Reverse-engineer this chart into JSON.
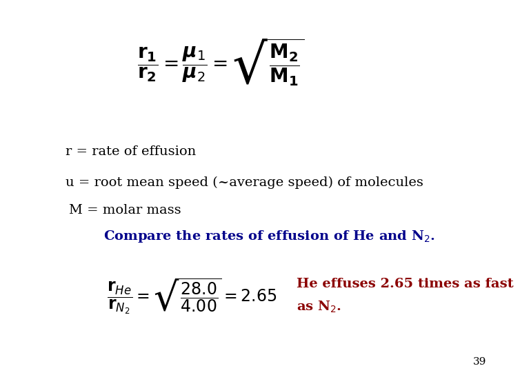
{
  "background_color": "#ffffff",
  "text_color_black": "#000000",
  "text_color_blue": "#00008B",
  "text_color_red": "#8B0000",
  "page_number": "39",
  "main_equation": "$\\dfrac{\\mathbf{r_1}}{\\mathbf{r_2}} = \\dfrac{\\boldsymbol{\\mu}_1}{\\boldsymbol{\\mu}_2} = \\sqrt{\\dfrac{\\mathbf{M_2}}{\\mathbf{M_1}}}$",
  "line1": "r = rate of effusion",
  "line2": "u = root mean speed (~average speed) of molecules",
  "line3": "M = molar mass",
  "compare_line": "Compare the rates of effusion of He and N$_2$.",
  "example_equation": "$\\dfrac{\\mathbf{r}_{He}}{\\mathbf{r}_{N_2}} = \\sqrt{\\dfrac{28.0}{4.00}} = 2.65$",
  "result_line1": "He effuses 2.65 times as fast",
  "result_line2": "as N$_2$.",
  "main_eq_fontsize": 20,
  "body_fontsize": 14,
  "compare_fontsize": 14,
  "example_eq_fontsize": 17,
  "result_fontsize": 14,
  "page_fontsize": 11
}
